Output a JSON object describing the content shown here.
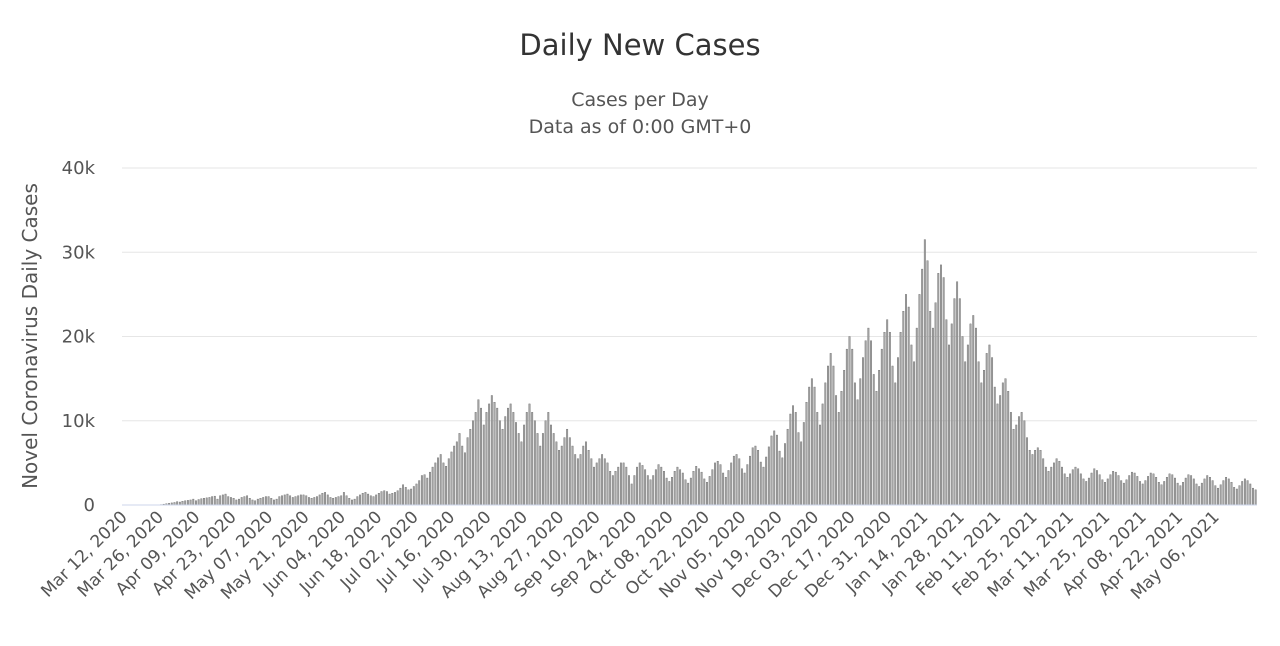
{
  "chart_data": {
    "type": "bar",
    "title": "Daily New Cases",
    "subtitle": [
      "Cases per Day",
      "Data as of 0:00 GMT+0"
    ],
    "ylabel": "Novel Coronavirus Daily Cases",
    "xlabel": "",
    "ylim": [
      0,
      40000
    ],
    "y_ticks": [
      0,
      10000,
      20000,
      30000,
      40000
    ],
    "y_tick_labels": [
      "0",
      "10k",
      "20k",
      "30k",
      "40k"
    ],
    "x_tick_labels": [
      "Mar 12, 2020",
      "Mar 26, 2020",
      "Apr 09, 2020",
      "Apr 23, 2020",
      "May 07, 2020",
      "May 21, 2020",
      "Jun 04, 2020",
      "Jun 18, 2020",
      "Jul 02, 2020",
      "Jul 16, 2020",
      "Jul 30, 2020",
      "Aug 13, 2020",
      "Aug 27, 2020",
      "Sep 10, 2020",
      "Sep 24, 2020",
      "Oct 08, 2020",
      "Oct 22, 2020",
      "Nov 05, 2020",
      "Nov 19, 2020",
      "Dec 03, 2020",
      "Dec 17, 2020",
      "Dec 31, 2020",
      "Jan 14, 2021",
      "Jan 28, 2021",
      "Feb 11, 2021",
      "Feb 25, 2021",
      "Mar 11, 2021",
      "Mar 25, 2021",
      "Apr 08, 2021",
      "Apr 22, 2021",
      "May 06, 2021"
    ],
    "x_start": "Mar 12, 2020",
    "x_end": "May 18, 2021",
    "grid": true,
    "legend": "none",
    "bar_color": "#a6a6a6",
    "bar_stroke": "#6b6b6b",
    "series": [
      {
        "values": [
          0,
          0,
          0,
          0,
          0,
          0,
          0,
          0,
          0,
          0,
          0,
          0,
          0,
          0,
          50,
          100,
          150,
          200,
          250,
          300,
          400,
          350,
          450,
          500,
          550,
          600,
          700,
          500,
          650,
          750,
          800,
          850,
          900,
          1000,
          1050,
          700,
          1100,
          1200,
          1300,
          1000,
          900,
          800,
          600,
          700,
          900,
          1000,
          1100,
          800,
          600,
          500,
          700,
          800,
          900,
          1000,
          1000,
          800,
          600,
          700,
          1000,
          1100,
          1200,
          1300,
          1100,
          900,
          1000,
          1100,
          1200,
          1200,
          1100,
          900,
          800,
          900,
          1000,
          1200,
          1400,
          1500,
          1200,
          900,
          800,
          900,
          1000,
          1100,
          1500,
          1100,
          800,
          600,
          700,
          1000,
          1200,
          1400,
          1500,
          1300,
          1100,
          1000,
          1200,
          1400,
          1600,
          1700,
          1600,
          1300,
          1400,
          1500,
          1700,
          2000,
          2400,
          2100,
          1800,
          1900,
          2200,
          2500,
          2900,
          3500,
          3600,
          3200,
          3900,
          4500,
          5000,
          5600,
          6000,
          5000,
          4600,
          5500,
          6300,
          7000,
          7500,
          8500,
          7000,
          6200,
          8000,
          9000,
          10000,
          11000,
          12500,
          11500,
          9500,
          11000,
          12000,
          13000,
          12200,
          11500,
          10000,
          9000,
          10500,
          11500,
          12000,
          11000,
          9800,
          8500,
          7500,
          9500,
          11000,
          12000,
          11000,
          10000,
          8500,
          7000,
          8500,
          10000,
          11000,
          9500,
          8500,
          7500,
          6500,
          7000,
          8000,
          9000,
          8000,
          7000,
          6000,
          5500,
          6000,
          7000,
          7500,
          6500,
          5500,
          4500,
          5000,
          5500,
          6000,
          5500,
          5000,
          4000,
          3500,
          4000,
          4500,
          5000,
          5000,
          4500,
          3500,
          2500,
          3500,
          4500,
          5000,
          4700,
          4200,
          3500,
          3000,
          3500,
          4200,
          4800,
          4500,
          4000,
          3200,
          2800,
          3300,
          4000,
          4500,
          4200,
          3800,
          3000,
          2600,
          3200,
          4000,
          4600,
          4300,
          3900,
          3100,
          2700,
          3400,
          4200,
          5000,
          5200,
          4800,
          3800,
          3300,
          4100,
          5000,
          5800,
          6000,
          5500,
          4300,
          3800,
          4800,
          5800,
          6800,
          7000,
          6500,
          5100,
          4500,
          5700,
          6900,
          8200,
          8800,
          8300,
          6400,
          5600,
          7300,
          9000,
          10800,
          11800,
          11000,
          8600,
          7500,
          9800,
          12200,
          14000,
          15000,
          14000,
          11000,
          9500,
          12000,
          14500,
          16500,
          18000,
          16500,
          13000,
          11000,
          13500,
          16000,
          18500,
          20000,
          18500,
          14500,
          12500,
          15000,
          17500,
          19500,
          21000,
          19500,
          15500,
          13500,
          16000,
          18500,
          20500,
          22000,
          20500,
          16500,
          14500,
          17500,
          20500,
          23000,
          25000,
          23500,
          19000,
          17000,
          21000,
          25000,
          28000,
          31500,
          29000,
          23000,
          21000,
          24000,
          27500,
          28500,
          27000,
          22000,
          19000,
          21500,
          24500,
          26500,
          24500,
          20000,
          17000,
          19000,
          21500,
          22500,
          21000,
          17000,
          14500,
          16000,
          18000,
          19000,
          17500,
          14000,
          12000,
          13000,
          14500,
          15000,
          13500,
          11000,
          9000,
          9500,
          10500,
          11000,
          10000,
          8000,
          6500,
          6000,
          6500,
          6800,
          6500,
          5500,
          4500,
          4000,
          4500,
          5000,
          5500,
          5200,
          4500,
          3700,
          3300,
          3700,
          4200,
          4500,
          4300,
          3700,
          3100,
          2800,
          3200,
          3800,
          4300,
          4100,
          3600,
          3000,
          2700,
          3100,
          3600,
          4000,
          3900,
          3500,
          2900,
          2600,
          3000,
          3500,
          3900,
          3800,
          3400,
          2800,
          2500,
          2900,
          3400,
          3800,
          3700,
          3300,
          2700,
          2400,
          2800,
          3300,
          3700,
          3600,
          3200,
          2600,
          2300,
          2700,
          3200,
          3600,
          3500,
          3100,
          2500,
          2200,
          2600,
          3100,
          3500,
          3300,
          2900,
          2300,
          2000,
          2400,
          2900,
          3300,
          3100,
          2700,
          2100,
          1900,
          2300,
          2800,
          3100,
          2900,
          2500,
          2000,
          1800
        ]
      }
    ]
  }
}
